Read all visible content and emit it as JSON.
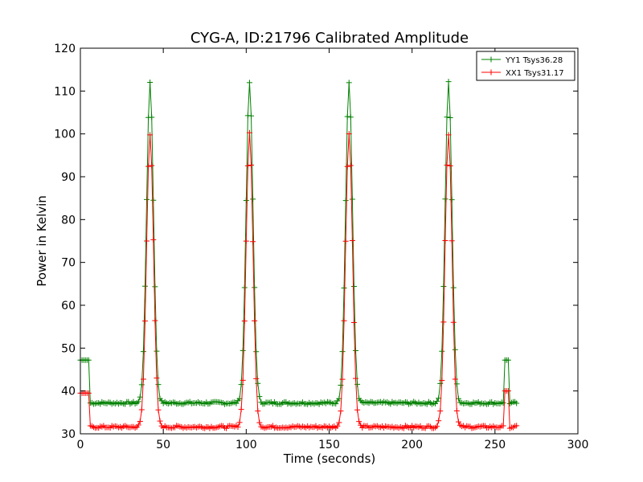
{
  "chart_data": {
    "type": "line",
    "title": "CYG-A, ID:21796 Calibrated Amplitude",
    "xlabel": "Time (seconds)",
    "ylabel": "Power in Kelvin",
    "xlim": [
      0,
      300
    ],
    "ylim": [
      30,
      120
    ],
    "xticks": [
      0,
      50,
      100,
      150,
      200,
      250,
      300
    ],
    "yticks": [
      30,
      40,
      50,
      60,
      70,
      80,
      90,
      100,
      110,
      120
    ],
    "grid": false,
    "legend_position": "top-right",
    "marker": "plus",
    "sample_step_seconds": 1,
    "peak_centers": [
      42,
      102,
      162,
      222
    ],
    "series": [
      {
        "name": "YY1 Tsys36.28",
        "color": "#008000",
        "start_level": 47.2,
        "baseline": 37.2,
        "peak": 112,
        "end_level": 47.2,
        "x_range": [
          0,
          263
        ]
      },
      {
        "name": "XX1 Tsys31.17",
        "color": "#ff0000",
        "start_level": 39.5,
        "baseline": 31.6,
        "peak": 100,
        "end_level": 40,
        "x_range": [
          0,
          263
        ]
      }
    ]
  }
}
